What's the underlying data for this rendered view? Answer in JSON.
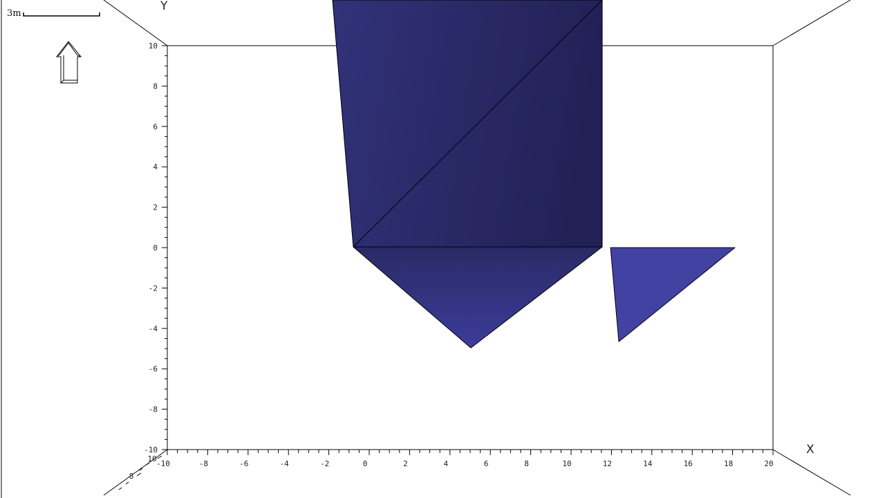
{
  "scale_bar": {
    "label": "3m"
  },
  "axes": {
    "x": {
      "title": "X",
      "range": [
        -10,
        20
      ],
      "ticks": [
        "-10",
        "-8",
        "-6",
        "-4",
        "-2",
        "0",
        "2",
        "4",
        "6",
        "8",
        "10",
        "12",
        "14",
        "16",
        "18",
        "20"
      ]
    },
    "y": {
      "title": "Y",
      "range": [
        -10,
        10
      ],
      "ticks": [
        "10",
        "8",
        "6",
        "4",
        "2",
        "0",
        "-2",
        "-4",
        "-6",
        "-8",
        "-10"
      ]
    },
    "z": {
      "ticks": [
        "10",
        "8"
      ]
    }
  },
  "colors": {
    "shape_fill": "#33337f",
    "shape_light": "#4444a6",
    "edges": "#000000"
  },
  "icons": {
    "up_arrow": "up-arrow-orientation-icon"
  }
}
